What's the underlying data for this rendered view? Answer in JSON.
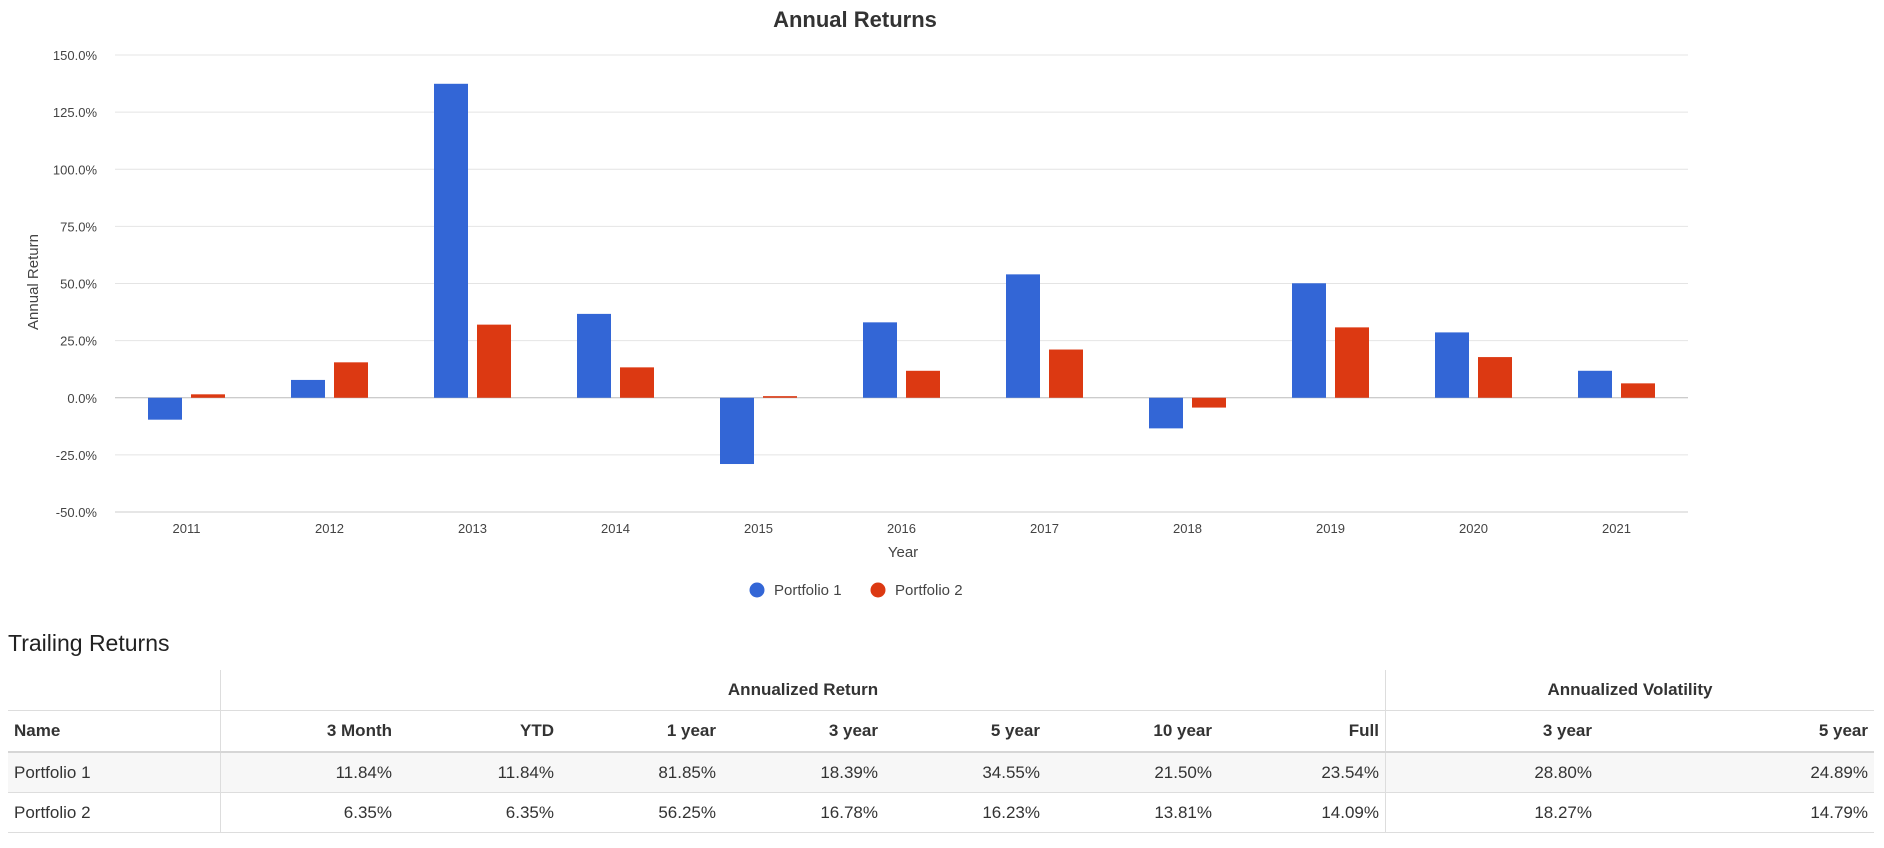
{
  "chart_data": {
    "type": "bar",
    "title": "Annual Returns",
    "xlabel": "Year",
    "ylabel": "Annual Return",
    "categories": [
      "2011",
      "2012",
      "2013",
      "2014",
      "2015",
      "2016",
      "2017",
      "2018",
      "2019",
      "2020",
      "2021"
    ],
    "series": [
      {
        "name": "Portfolio 1",
        "color": "#3366d6",
        "values": [
          -9.6,
          7.8,
          137.4,
          36.7,
          -29.0,
          33.0,
          54.0,
          -13.4,
          50.1,
          28.6,
          11.8
        ]
      },
      {
        "name": "Portfolio 2",
        "color": "#dc3912",
        "values": [
          1.5,
          15.5,
          32.0,
          13.3,
          0.7,
          11.8,
          21.1,
          -4.3,
          30.8,
          17.8,
          6.3
        ]
      }
    ],
    "ylim": [
      -50,
      150
    ],
    "yticks": [
      -50,
      -25,
      0,
      25,
      50,
      75,
      100,
      125,
      150
    ],
    "ytick_labels": [
      "-50.0%",
      "-25.0%",
      "0.0%",
      "25.0%",
      "50.0%",
      "75.0%",
      "100.0%",
      "125.0%",
      "150.0%"
    ],
    "grid": true,
    "legend_position": "bottom"
  },
  "trailing": {
    "title": "Trailing Returns",
    "group_headers": {
      "return": "Annualized Return",
      "volatility": "Annualized Volatility"
    },
    "columns": [
      "Name",
      "3 Month",
      "YTD",
      "1 year",
      "3 year",
      "5 year",
      "10 year",
      "Full",
      "3 year",
      "5 year"
    ],
    "rows": [
      [
        "Portfolio 1",
        "11.84%",
        "11.84%",
        "81.85%",
        "18.39%",
        "34.55%",
        "21.50%",
        "23.54%",
        "28.80%",
        "24.89%"
      ],
      [
        "Portfolio 2",
        "6.35%",
        "6.35%",
        "56.25%",
        "16.78%",
        "16.23%",
        "13.81%",
        "14.09%",
        "18.27%",
        "14.79%"
      ]
    ]
  }
}
